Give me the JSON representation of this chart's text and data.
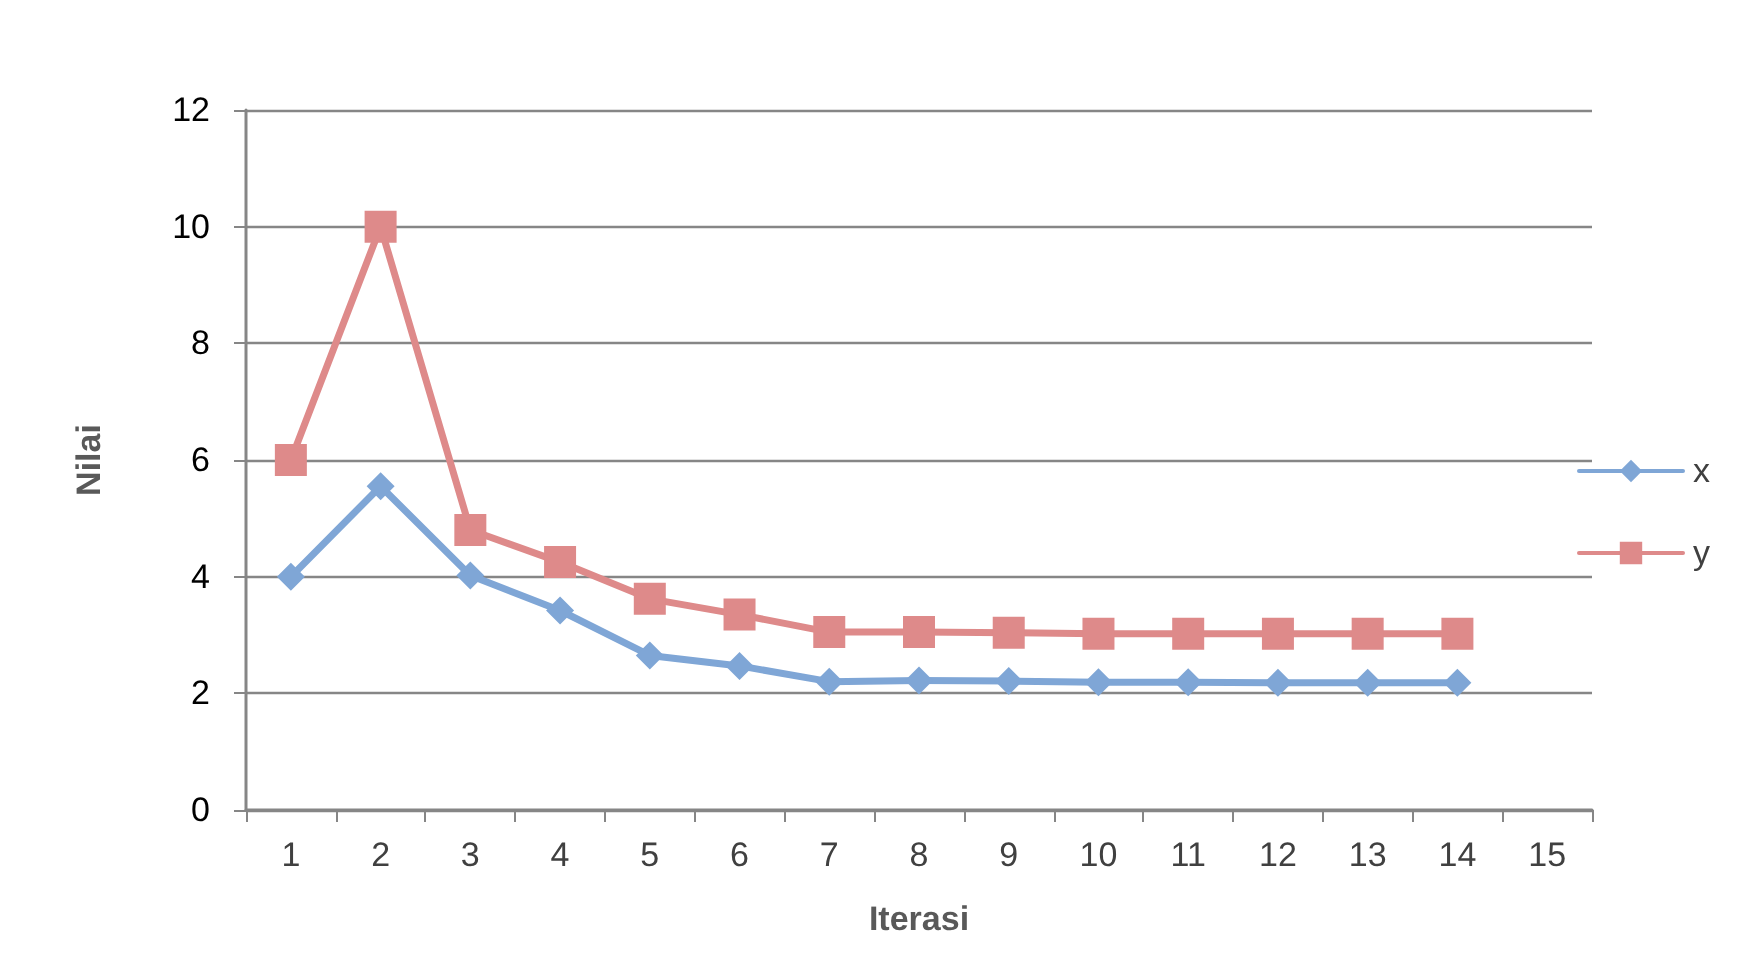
{
  "chart_data": {
    "type": "line",
    "xlabel": "Iterasi",
    "ylabel": "Nilai",
    "categories": [
      "1",
      "2",
      "3",
      "4",
      "5",
      "6",
      "7",
      "8",
      "9",
      "10",
      "11",
      "12",
      "13",
      "14",
      "15"
    ],
    "series": [
      {
        "name": "x",
        "color": "#7fa6d6",
        "marker": "diamond",
        "values": [
          4.0,
          5.55,
          4.02,
          3.42,
          2.65,
          2.47,
          2.2,
          2.22,
          2.21,
          2.19,
          2.19,
          2.18,
          2.18,
          2.18,
          null
        ]
      },
      {
        "name": "y",
        "color": "#de8a8a",
        "marker": "square",
        "values": [
          6.0,
          10.0,
          4.8,
          4.25,
          3.62,
          3.35,
          3.05,
          3.05,
          3.04,
          3.02,
          3.02,
          3.02,
          3.02,
          3.02,
          null
        ]
      }
    ],
    "ylim": [
      0,
      12
    ],
    "yticks": [
      0,
      2,
      4,
      6,
      8,
      10,
      12
    ],
    "grid": "y",
    "legend": "right",
    "line_style": "solid"
  }
}
